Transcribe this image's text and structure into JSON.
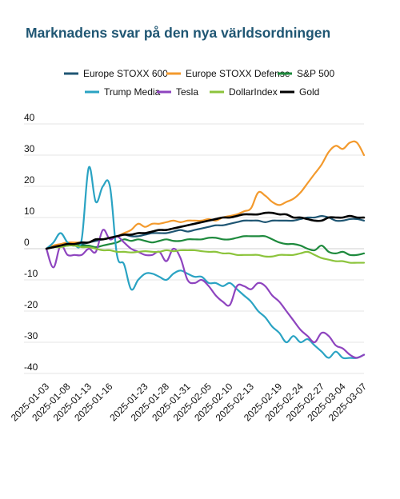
{
  "chart_data": {
    "type": "line",
    "title": "Marknadens svar på den nya världsordningen",
    "xlabel": "",
    "ylabel": "",
    "ylim": [
      -40,
      40
    ],
    "yticks": [
      40,
      30,
      20,
      10,
      0,
      -10,
      -20,
      -30,
      -40
    ],
    "grid": true,
    "legend_position": "top",
    "x": [
      "2025-01-03",
      "2025-01-06",
      "2025-01-07",
      "2025-01-08",
      "2025-01-09",
      "2025-01-10",
      "2025-01-13",
      "2025-01-14",
      "2025-01-15",
      "2025-01-16",
      "2025-01-17",
      "2025-01-20",
      "2025-01-21",
      "2025-01-22",
      "2025-01-23",
      "2025-01-24",
      "2025-01-27",
      "2025-01-28",
      "2025-01-29",
      "2025-01-30",
      "2025-01-31",
      "2025-02-03",
      "2025-02-04",
      "2025-02-05",
      "2025-02-06",
      "2025-02-07",
      "2025-02-10",
      "2025-02-11",
      "2025-02-12",
      "2025-02-13",
      "2025-02-14",
      "2025-02-17",
      "2025-02-18",
      "2025-02-19",
      "2025-02-20",
      "2025-02-21",
      "2025-02-24",
      "2025-02-25",
      "2025-02-26",
      "2025-02-27",
      "2025-02-28",
      "2025-03-03",
      "2025-03-04",
      "2025-03-05",
      "2025-03-06",
      "2025-03-07"
    ],
    "xtick_labels": [
      "2025-01-03",
      "2025-01-08",
      "2025-01-13",
      "2025-01-16",
      "2025-01-23",
      "2025-01-28",
      "2025-01-31",
      "2025-02-05",
      "2025-02-10",
      "2025-02-13",
      "2025-02-19",
      "2025-02-24",
      "2025-02-27",
      "2025-03-04",
      "2025-03-07"
    ],
    "series": [
      {
        "name": "Europe STOXX 600",
        "color": "#1f5673",
        "values": [
          0,
          0.5,
          1,
          1.5,
          1.8,
          1.5,
          2,
          2.5,
          3,
          3.5,
          4,
          4.5,
          4,
          4,
          4.5,
          5,
          5,
          5,
          5.5,
          6,
          5.5,
          6,
          6.5,
          7,
          7.5,
          7.5,
          8,
          8.5,
          9,
          9,
          9,
          8.5,
          9,
          9,
          9,
          9,
          9.5,
          10,
          10,
          10.5,
          10,
          9,
          9,
          9.5,
          9.5,
          9
        ]
      },
      {
        "name": "Europe STOXX Defense",
        "color": "#f39a2d",
        "values": [
          0,
          1,
          1.5,
          2,
          2,
          2,
          2,
          3,
          3,
          3.5,
          4,
          5,
          6,
          8,
          7,
          8,
          8,
          8.5,
          9,
          8.5,
          9,
          9,
          9,
          9.5,
          9,
          10,
          10.5,
          11,
          12,
          13,
          18,
          17,
          15,
          14,
          15,
          16,
          18,
          21,
          24,
          27,
          31,
          33,
          32,
          34,
          34,
          30
        ]
      },
      {
        "name": "S&P 500",
        "color": "#1e8a3d",
        "values": [
          0,
          0.5,
          0.8,
          1,
          1.2,
          1,
          1,
          0.5,
          1,
          1.5,
          2,
          3,
          2.5,
          3,
          2.5,
          2,
          2.5,
          3,
          2.5,
          2.5,
          3,
          3,
          3,
          3.5,
          3.5,
          3,
          3,
          3.5,
          4,
          4,
          4,
          4,
          3,
          2,
          1.5,
          1.5,
          1,
          0,
          -0.5,
          1,
          -1,
          -1.5,
          -1,
          -2,
          -2,
          -1.5
        ]
      },
      {
        "name": "Trump Media",
        "color": "#2aa3c3",
        "values": [
          0,
          2,
          5,
          2,
          1,
          3,
          26,
          15,
          20,
          20,
          -2,
          -5,
          -13,
          -10,
          -8,
          -8,
          -9,
          -10,
          -8,
          -7,
          -8,
          -9,
          -9,
          -11,
          -11,
          -12,
          -11,
          -13,
          -15,
          -17,
          -20,
          -22,
          -25,
          -27,
          -30,
          -28,
          -30,
          -29,
          -31,
          -33,
          -35,
          -33,
          -35,
          -35,
          -35,
          -34
        ]
      },
      {
        "name": "Tesla",
        "color": "#8e44bf",
        "values": [
          0,
          -6,
          1,
          -2,
          -2,
          -2,
          0,
          -1,
          6,
          3,
          4,
          2,
          0,
          -1,
          -2,
          -2,
          -1,
          -4,
          0,
          -3,
          -10,
          -11,
          -10,
          -12,
          -15,
          -17,
          -18,
          -12,
          -12,
          -13,
          -11,
          -12,
          -15,
          -17,
          -20,
          -23,
          -26,
          -28,
          -30,
          -27,
          -28,
          -31,
          -32,
          -34,
          -35,
          -34
        ]
      },
      {
        "name": "DollarIndex",
        "color": "#8cc43c",
        "values": [
          0,
          0.5,
          0.5,
          1,
          1,
          0.5,
          0.5,
          0,
          -0.5,
          -0.5,
          -1,
          -1,
          -1.2,
          -1,
          -0.8,
          -1,
          -1,
          -0.5,
          -0.8,
          -0.5,
          -0.5,
          -0.5,
          -0.8,
          -1,
          -1,
          -1.5,
          -1.5,
          -2,
          -2,
          -2,
          -2,
          -2.5,
          -2.5,
          -2,
          -2,
          -2,
          -1.5,
          -1,
          -2,
          -3,
          -3.5,
          -4,
          -4,
          -4.5,
          -4.5,
          -4.5
        ]
      },
      {
        "name": "Gold",
        "color": "#000000",
        "values": [
          0,
          0.5,
          1,
          1.5,
          1.5,
          2,
          2,
          3,
          3,
          3.5,
          4,
          4.5,
          4.5,
          5,
          5,
          5.5,
          6,
          6,
          6.5,
          7,
          7.5,
          8,
          8.5,
          9,
          9.5,
          10,
          10,
          10.5,
          11,
          11,
          11,
          11.5,
          11.5,
          11,
          11,
          10,
          10,
          9.5,
          9,
          9,
          10,
          10,
          10,
          10.5,
          10,
          10
        ]
      }
    ]
  }
}
